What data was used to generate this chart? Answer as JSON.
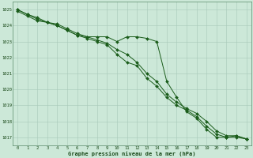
{
  "title": "Graphe pression niveau de la mer (hPa)",
  "bg_color": "#cce8d8",
  "line_color": "#1a5c1a",
  "xlim": [
    -0.5,
    23.5
  ],
  "ylim": [
    1016.5,
    1025.5
  ],
  "xticks": [
    0,
    1,
    2,
    3,
    4,
    5,
    6,
    7,
    8,
    9,
    10,
    11,
    12,
    13,
    14,
    15,
    16,
    17,
    18,
    19,
    20,
    21,
    22,
    23
  ],
  "yticks": [
    1017,
    1018,
    1019,
    1020,
    1021,
    1022,
    1023,
    1024,
    1025
  ],
  "series1": [
    1025.0,
    1024.7,
    1024.5,
    1024.2,
    1024.1,
    1023.8,
    1023.5,
    1023.3,
    1023.3,
    1023.3,
    1023.0,
    1023.3,
    1023.3,
    1023.2,
    1023.0,
    1020.5,
    1019.5,
    1018.6,
    1018.2,
    1017.5,
    1017.0,
    1017.0,
    1017.0,
    1016.9
  ],
  "series2": [
    1024.9,
    1024.6,
    1024.3,
    1024.2,
    1024.0,
    1023.7,
    1023.4,
    1023.3,
    1023.1,
    1022.9,
    1022.5,
    1022.2,
    1021.7,
    1021.0,
    1020.5,
    1019.7,
    1019.2,
    1018.8,
    1018.5,
    1018.0,
    1017.4,
    1017.1,
    1017.1,
    1016.9
  ],
  "series3": [
    1025.0,
    1024.7,
    1024.4,
    1024.2,
    1024.0,
    1023.7,
    1023.4,
    1023.2,
    1023.0,
    1022.8,
    1022.2,
    1021.7,
    1021.5,
    1020.7,
    1020.2,
    1019.5,
    1019.0,
    1018.7,
    1018.3,
    1017.7,
    1017.2,
    1017.0,
    1017.1,
    1016.9
  ]
}
